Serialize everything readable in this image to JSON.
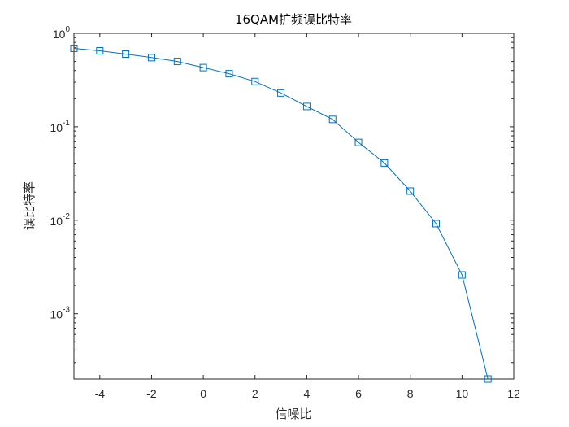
{
  "chart_data": {
    "type": "line",
    "title": "16QAM扩频误比特率",
    "xlabel": "信噪比",
    "ylabel": "误比特率",
    "x_scale": "linear",
    "y_scale": "log",
    "xlim": [
      -5,
      12
    ],
    "ylim": [
      0.0002,
      1
    ],
    "x_ticks": [
      -4,
      -2,
      0,
      2,
      4,
      6,
      8,
      10,
      12
    ],
    "x_tick_labels": [
      "-4",
      "-2",
      "0",
      "2",
      "4",
      "6",
      "8",
      "10",
      "12"
    ],
    "y_ticks": [
      0.001,
      0.01,
      0.1,
      1
    ],
    "y_tick_labels": [
      {
        "base": "10",
        "exp": "-3"
      },
      {
        "base": "10",
        "exp": "-2"
      },
      {
        "base": "10",
        "exp": "-1"
      },
      {
        "base": "10",
        "exp": "0"
      }
    ],
    "grid": false,
    "marker": "square",
    "series_color": "#0072BD",
    "x": [
      -5,
      -4,
      -3,
      -2,
      -1,
      0,
      1,
      2,
      3,
      4,
      5,
      6,
      7,
      8,
      9,
      10,
      11
    ],
    "series": [
      {
        "values": [
          0.69,
          0.65,
          0.6,
          0.55,
          0.5,
          0.43,
          0.37,
          0.305,
          0.23,
          0.165,
          0.12,
          0.068,
          0.041,
          0.0205,
          0.0092,
          0.0026,
          0.0002
        ]
      }
    ]
  }
}
